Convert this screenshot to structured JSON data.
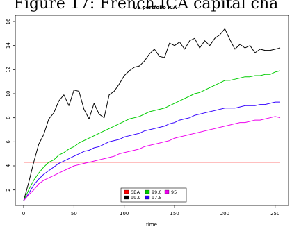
{
  "figure": {
    "caption": "Figure 17: French ICA capital cha"
  },
  "chart_data": {
    "type": "line",
    "title": "US portfolio ICA",
    "xlabel": "time",
    "ylabel": "",
    "xlim": [
      0,
      255
    ],
    "ylim": [
      1,
      16
    ],
    "xticks": [
      0,
      50,
      100,
      150,
      200,
      250
    ],
    "yticks": [
      2,
      4,
      6,
      8,
      10,
      12,
      14,
      16
    ],
    "legend_position": "bottom-center",
    "series": [
      {
        "name": "SBA",
        "color": "#ff0000",
        "x": [
          0,
          255
        ],
        "y": [
          4.3,
          4.3
        ]
      },
      {
        "name": "99.9",
        "color": "#000000",
        "x": [
          0,
          5,
          10,
          15,
          20,
          25,
          30,
          35,
          40,
          45,
          50,
          55,
          60,
          65,
          70,
          75,
          80,
          85,
          90,
          95,
          100,
          105,
          110,
          115,
          120,
          125,
          130,
          135,
          140,
          145,
          150,
          155,
          160,
          165,
          170,
          175,
          180,
          185,
          190,
          195,
          200,
          205,
          210,
          215,
          220,
          225,
          230,
          235,
          240,
          245,
          250,
          255
        ],
        "y": [
          1.1,
          2.6,
          4.3,
          5.8,
          6.6,
          7.9,
          8.4,
          9.4,
          9.9,
          9.0,
          10.3,
          10.2,
          8.7,
          7.9,
          9.2,
          8.3,
          8.0,
          9.9,
          10.2,
          10.8,
          11.5,
          11.9,
          12.2,
          12.3,
          12.7,
          13.3,
          13.7,
          13.1,
          13.0,
          14.2,
          14.0,
          14.3,
          13.7,
          14.4,
          14.6,
          13.8,
          14.4,
          14.0,
          14.6,
          14.9,
          15.4,
          14.5,
          13.7,
          14.1,
          13.8,
          14.0,
          13.4,
          13.7,
          13.6,
          13.6,
          13.7,
          13.8
        ]
      },
      {
        "name": "99.0",
        "color": "#00cc00",
        "x": [
          0,
          5,
          10,
          15,
          20,
          25,
          30,
          35,
          40,
          45,
          50,
          55,
          60,
          65,
          70,
          75,
          80,
          85,
          90,
          95,
          100,
          105,
          110,
          115,
          120,
          125,
          130,
          135,
          140,
          145,
          150,
          155,
          160,
          165,
          170,
          175,
          180,
          185,
          190,
          195,
          200,
          205,
          210,
          215,
          220,
          225,
          230,
          235,
          240,
          245,
          250,
          255
        ],
        "y": [
          1.1,
          2.0,
          2.8,
          3.4,
          3.9,
          4.3,
          4.5,
          4.9,
          5.1,
          5.4,
          5.6,
          5.9,
          6.1,
          6.3,
          6.5,
          6.7,
          6.9,
          7.1,
          7.3,
          7.5,
          7.7,
          7.9,
          8.0,
          8.1,
          8.3,
          8.5,
          8.6,
          8.7,
          8.8,
          9.0,
          9.2,
          9.4,
          9.6,
          9.8,
          10.0,
          10.1,
          10.3,
          10.5,
          10.7,
          10.9,
          11.1,
          11.1,
          11.2,
          11.3,
          11.4,
          11.4,
          11.5,
          11.5,
          11.6,
          11.6,
          11.8,
          11.9
        ]
      },
      {
        "name": "97.5",
        "color": "#3300ff",
        "x": [
          0,
          5,
          10,
          15,
          20,
          25,
          30,
          35,
          40,
          45,
          50,
          55,
          60,
          65,
          70,
          75,
          80,
          85,
          90,
          95,
          100,
          105,
          110,
          115,
          120,
          125,
          130,
          135,
          140,
          145,
          150,
          155,
          160,
          165,
          170,
          175,
          180,
          185,
          190,
          195,
          200,
          205,
          210,
          215,
          220,
          225,
          230,
          235,
          240,
          245,
          250,
          255
        ],
        "y": [
          1.1,
          1.7,
          2.4,
          2.9,
          3.3,
          3.6,
          3.9,
          4.2,
          4.4,
          4.6,
          4.8,
          5.0,
          5.2,
          5.3,
          5.5,
          5.6,
          5.8,
          6.0,
          6.1,
          6.2,
          6.4,
          6.5,
          6.6,
          6.7,
          6.9,
          7.0,
          7.1,
          7.2,
          7.3,
          7.5,
          7.6,
          7.8,
          7.9,
          8.0,
          8.2,
          8.3,
          8.4,
          8.5,
          8.6,
          8.7,
          8.8,
          8.8,
          8.8,
          8.9,
          9.0,
          9.0,
          9.0,
          9.1,
          9.1,
          9.2,
          9.3,
          9.3
        ]
      },
      {
        "name": "95",
        "color": "#ee00ee",
        "x": [
          0,
          5,
          10,
          15,
          20,
          25,
          30,
          35,
          40,
          45,
          50,
          55,
          60,
          65,
          70,
          75,
          80,
          85,
          90,
          95,
          100,
          105,
          110,
          115,
          120,
          125,
          130,
          135,
          140,
          145,
          150,
          155,
          160,
          165,
          170,
          175,
          180,
          185,
          190,
          195,
          200,
          205,
          210,
          215,
          220,
          225,
          230,
          235,
          240,
          245,
          250,
          255
        ],
        "y": [
          1.1,
          1.6,
          2.0,
          2.5,
          2.8,
          3.0,
          3.2,
          3.4,
          3.6,
          3.8,
          4.0,
          4.1,
          4.2,
          4.3,
          4.4,
          4.5,
          4.6,
          4.7,
          4.8,
          5.0,
          5.1,
          5.2,
          5.3,
          5.4,
          5.6,
          5.7,
          5.8,
          5.9,
          6.0,
          6.1,
          6.3,
          6.4,
          6.5,
          6.6,
          6.7,
          6.8,
          6.9,
          7.0,
          7.1,
          7.2,
          7.3,
          7.4,
          7.5,
          7.6,
          7.6,
          7.7,
          7.8,
          7.8,
          7.9,
          8.0,
          8.1,
          8.0
        ]
      }
    ],
    "legend": {
      "rows": [
        [
          {
            "name": "SBA",
            "color": "#ff0000"
          },
          {
            "name": "99.0",
            "color": "#00cc00"
          },
          {
            "name": "95",
            "color": "#ee00ee"
          }
        ],
        [
          {
            "name": "99.9",
            "color": "#000000"
          },
          {
            "name": "97.5",
            "color": "#3300ff"
          }
        ]
      ]
    }
  }
}
